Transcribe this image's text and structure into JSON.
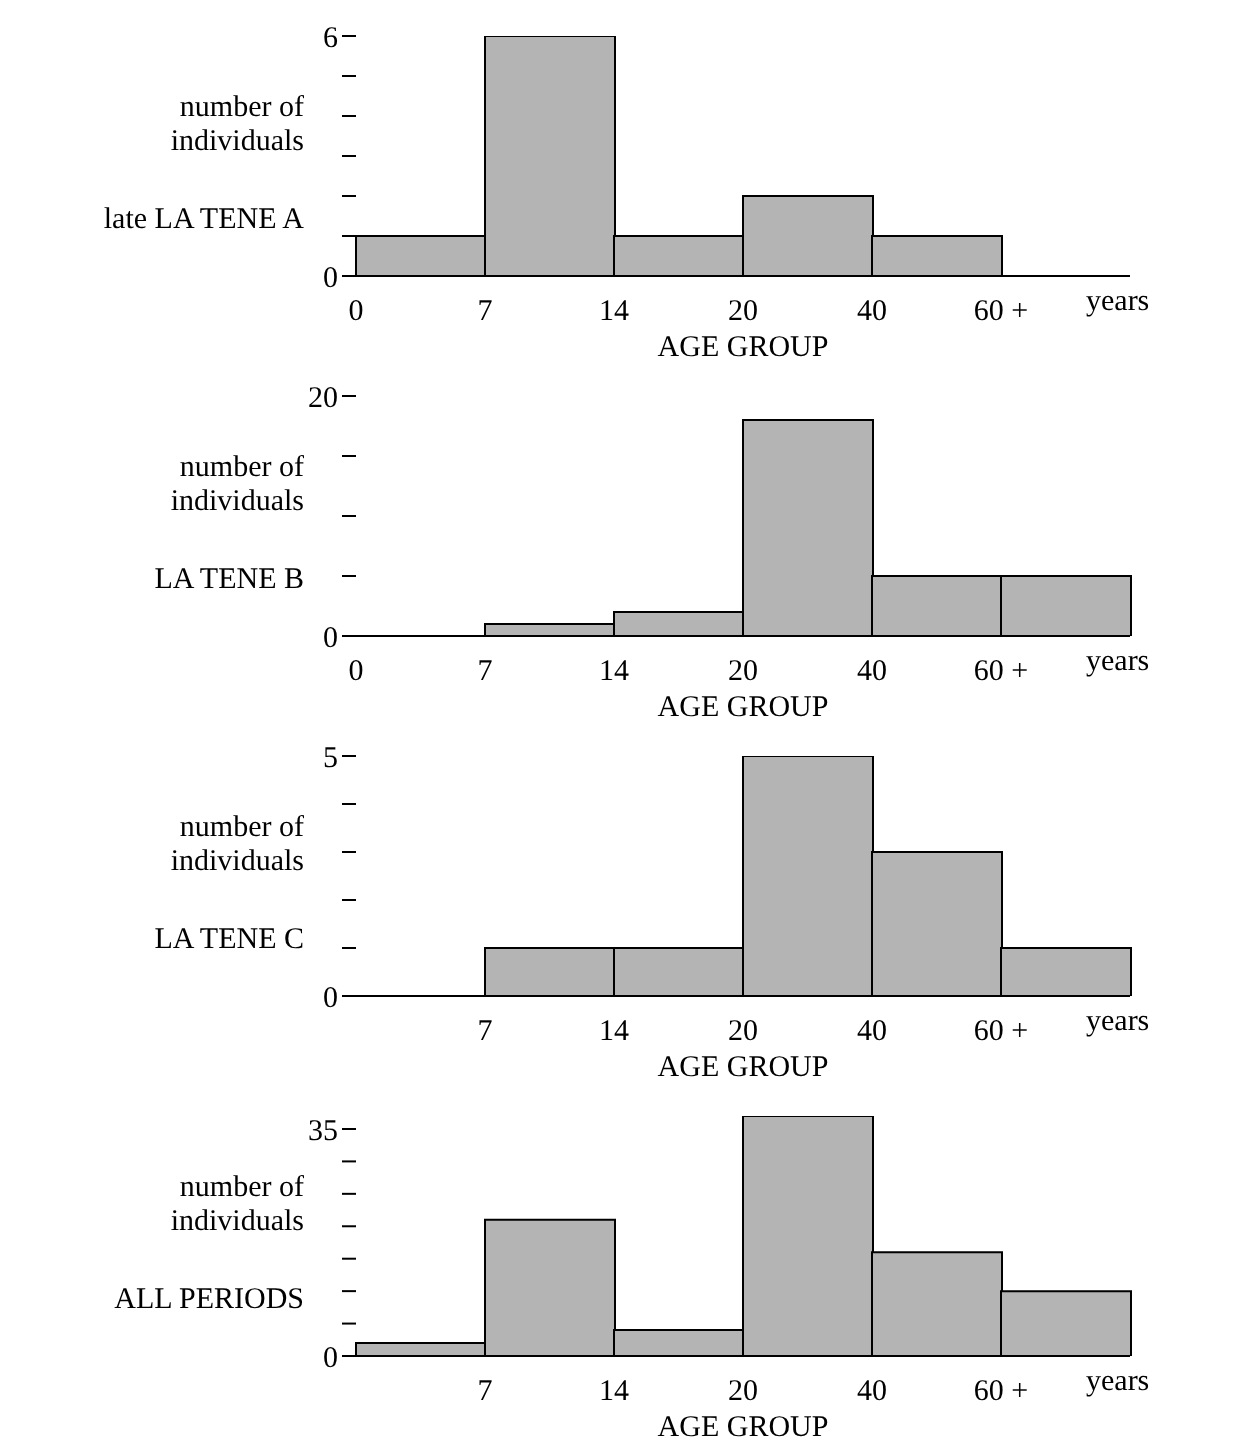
{
  "chart_data": [
    {
      "type": "bar",
      "title": "late LA TENE A",
      "ylabel": "number of individuals",
      "xlabel": "AGE GROUP",
      "categories": [
        "0",
        "7",
        "14",
        "20",
        "40",
        "60 +"
      ],
      "values": [
        1,
        6,
        1,
        2,
        1,
        0
      ],
      "color": "#b4b4b4",
      "annotations": [
        "years"
      ],
      "ylim": [
        0,
        6
      ],
      "yticks": [
        0,
        {
          "value": 1,
          "label": null
        },
        {
          "value": 2,
          "label": null
        },
        {
          "value": 3,
          "label": null
        },
        {
          "value": 4,
          "label": null
        },
        {
          "value": 5,
          "label": null
        },
        6
      ],
      "grid": false,
      "legend": false
    },
    {
      "type": "bar",
      "title": "LA TENE B",
      "ylabel": "number of individuals",
      "xlabel": "AGE GROUP",
      "categories": [
        "0",
        "7",
        "14",
        "20",
        "40",
        "60 +"
      ],
      "values": [
        0,
        1,
        2,
        18,
        5,
        5
      ],
      "color": "#b4b4b4",
      "annotations": [
        "years"
      ],
      "ylim": [
        0,
        20
      ],
      "yticks": [
        0,
        {
          "value": 5,
          "label": null
        },
        {
          "value": 10,
          "label": null
        },
        {
          "value": 15,
          "label": null
        },
        20
      ],
      "grid": false,
      "legend": false
    },
    {
      "type": "bar",
      "title": "LA TENE C",
      "ylabel": "number of individuals",
      "xlabel": "AGE GROUP",
      "categories": [
        null,
        "7",
        "14",
        "20",
        "40",
        "60 +"
      ],
      "values": [
        0,
        1,
        1,
        5,
        3,
        1
      ],
      "color": "#b4b4b4",
      "annotations": [
        "years"
      ],
      "ylim": [
        0,
        5
      ],
      "yticks": [
        0,
        {
          "value": 1,
          "label": null
        },
        {
          "value": 2,
          "label": null
        },
        {
          "value": 3,
          "label": null
        },
        {
          "value": 4,
          "label": null
        },
        5
      ],
      "grid": false,
      "legend": false
    },
    {
      "type": "bar",
      "title": "ALL PERIODS",
      "ylabel": "number of individuals",
      "xlabel": "AGE GROUP",
      "categories": [
        null,
        "7",
        "14",
        "20",
        "40",
        "60 +"
      ],
      "values": [
        2,
        21,
        4,
        37,
        16,
        10
      ],
      "color": "#b4b4b4",
      "annotations": [
        "years"
      ],
      "ylim": [
        0,
        37
      ],
      "yticks": [
        0,
        {
          "value": 5,
          "label": null
        },
        {
          "value": 10,
          "label": null
        },
        {
          "value": 15,
          "label": null
        },
        {
          "value": 20,
          "label": null
        },
        {
          "value": 25,
          "label": null
        },
        {
          "value": 30,
          "label": null
        },
        35
      ],
      "grid": false,
      "legend": false
    }
  ]
}
